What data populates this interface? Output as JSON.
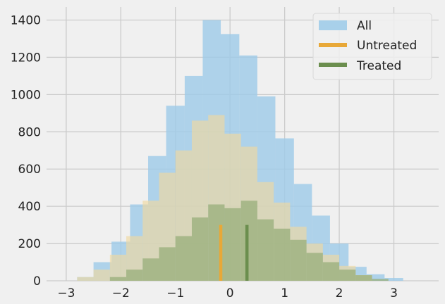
{
  "chart_data": {
    "type": "bar",
    "xlim": [
      -3.36,
      3.82
    ],
    "ylim": [
      0,
      1470
    ],
    "xticks": [
      -3,
      -2,
      -1,
      0,
      1,
      2,
      3
    ],
    "yticks": [
      0,
      200,
      400,
      600,
      800,
      1000,
      1200,
      1400
    ],
    "grid": true,
    "legend_position": "top-right",
    "series": [
      {
        "name": "All",
        "color": "#9dcbe8",
        "opacity": 0.8,
        "edges": [
          -2.8,
          -2.5,
          -2.17,
          -1.83,
          -1.5,
          -1.17,
          -0.83,
          -0.5,
          -0.17,
          0.17,
          0.5,
          0.83,
          1.17,
          1.5,
          1.83,
          2.17,
          2.5,
          2.83,
          3.17
        ],
        "counts": [
          20,
          100,
          210,
          410,
          670,
          940,
          1100,
          1400,
          1325,
          1210,
          990,
          765,
          520,
          350,
          200,
          75,
          35,
          15
        ]
      },
      {
        "name": "Untreated",
        "color": "#f0d9a0",
        "opacity": 0.65,
        "edges": [
          -2.8,
          -2.5,
          -2.2,
          -1.9,
          -1.6,
          -1.3,
          -1.0,
          -0.7,
          -0.4,
          -0.1,
          0.2,
          0.5,
          0.8,
          1.1,
          1.4,
          1.7,
          2.0,
          2.3,
          2.6
        ],
        "counts": [
          20,
          60,
          140,
          240,
          430,
          580,
          700,
          860,
          890,
          790,
          720,
          530,
          420,
          290,
          200,
          140,
          80,
          30
        ]
      },
      {
        "name": "Treated",
        "color": "#97ad7a",
        "opacity": 0.75,
        "edges": [
          -2.2,
          -1.9,
          -1.6,
          -1.3,
          -1.0,
          -0.7,
          -0.4,
          -0.1,
          0.2,
          0.5,
          0.8,
          1.1,
          1.4,
          1.7,
          2.0,
          2.3,
          2.6,
          2.9
        ],
        "counts": [
          20,
          60,
          120,
          180,
          240,
          340,
          410,
          390,
          430,
          330,
          280,
          220,
          150,
          100,
          60,
          30,
          10
        ]
      }
    ],
    "vlines": [
      {
        "series": "Untreated",
        "x": -0.17,
        "y": 300,
        "color": "#e8a838"
      },
      {
        "series": "Treated",
        "x": 0.31,
        "y": 300,
        "color": "#6b8e4e"
      }
    ]
  },
  "legend": [
    {
      "label": "All",
      "color": "#a8d0ea"
    },
    {
      "label": "Untreated",
      "color": "#e8a838"
    },
    {
      "label": "Treated",
      "color": "#6b8e4e"
    }
  ]
}
